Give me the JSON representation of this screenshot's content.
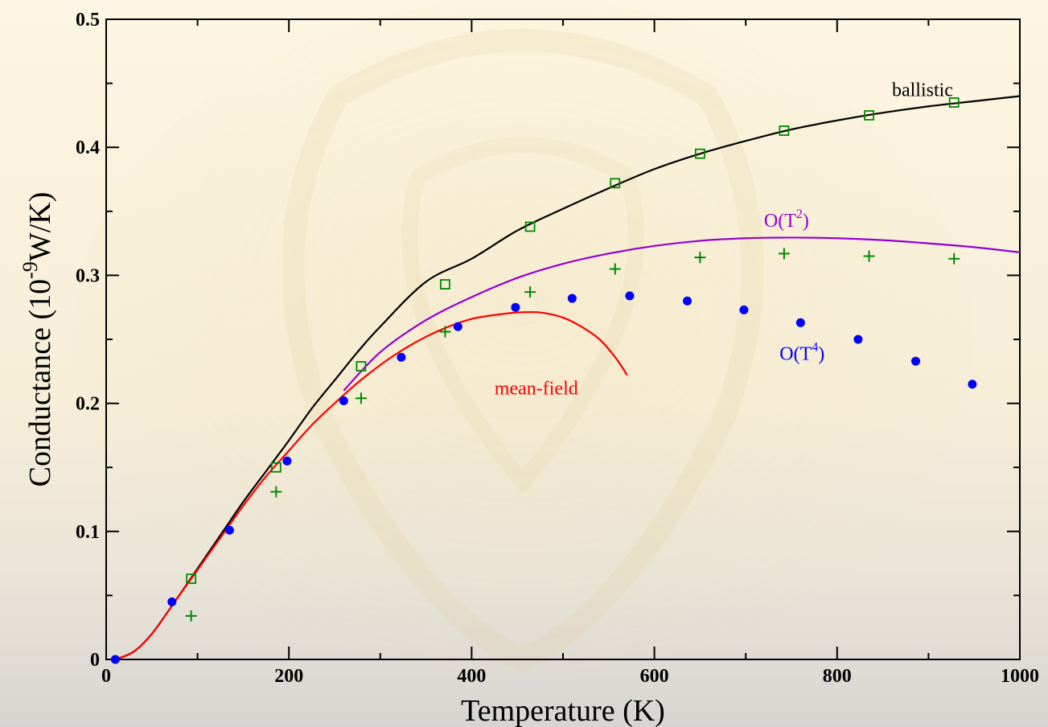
{
  "colors": {
    "ballistic": "#000000",
    "o_t2": "#9400d3",
    "mean_field": "#ff0000",
    "o_t4": "#0000ff",
    "squares": "#008800",
    "plus": "#008800"
  },
  "chart_data": {
    "type": "line",
    "xlabel": "Temperature (K)",
    "ylabel": {
      "prefix": "Conductance (10",
      "exp": "-9",
      "suffix": "W/K)"
    },
    "xlim": [
      0,
      1000
    ],
    "ylim": [
      0,
      0.5
    ],
    "xticks": [
      0,
      200,
      400,
      600,
      800,
      1000
    ],
    "yticks": [
      0,
      0.1,
      0.2,
      0.3,
      0.4,
      0.5
    ],
    "xtick_labels": [
      "0",
      "200",
      "400",
      "600",
      "800",
      "1000"
    ],
    "ytick_labels": [
      "0",
      "0.1",
      "0.2",
      "0.3",
      "0.4",
      "0.5"
    ],
    "grid": false,
    "annotations": [
      {
        "id": "ballistic",
        "text": "ballistic",
        "color": "#000000",
        "x": 860,
        "y": 0.44
      },
      {
        "id": "o_t2",
        "text": "O(T",
        "sup": "2",
        "tail": ")",
        "color": "#9400d3",
        "x": 720,
        "y": 0.338
      },
      {
        "id": "mean_field",
        "text": "mean-field",
        "color": "#ff0000",
        "x": 425,
        "y": 0.207
      },
      {
        "id": "o_t4",
        "text": "O(T",
        "sup": "4",
        "tail": ")",
        "color": "#0000ff",
        "x": 737,
        "y": 0.234
      }
    ],
    "series": [
      {
        "name": "ballistic",
        "kind": "line",
        "color": "#000000",
        "x": [
          10,
          30,
          50,
          75,
          100,
          125,
          150,
          175,
          200,
          225,
          250,
          275,
          300,
          350,
          400,
          450,
          500,
          550,
          600,
          650,
          700,
          750,
          800,
          850,
          900,
          950,
          1000
        ],
        "y": [
          0,
          0.006,
          0.02,
          0.045,
          0.071,
          0.097,
          0.123,
          0.147,
          0.171,
          0.196,
          0.218,
          0.24,
          0.26,
          0.295,
          0.313,
          0.335,
          0.352,
          0.368,
          0.383,
          0.395,
          0.405,
          0.414,
          0.421,
          0.427,
          0.432,
          0.436,
          0.44
        ]
      },
      {
        "name": "O(T^2)",
        "kind": "line",
        "color": "#9400d3",
        "x": [
          260,
          300,
          350,
          400,
          450,
          500,
          550,
          600,
          650,
          700,
          750,
          800,
          850,
          900,
          950,
          1000
        ],
        "y": [
          0.21,
          0.24,
          0.265,
          0.283,
          0.298,
          0.309,
          0.317,
          0.323,
          0.327,
          0.329,
          0.3295,
          0.329,
          0.3275,
          0.325,
          0.322,
          0.318
        ]
      },
      {
        "name": "mean-field",
        "kind": "line",
        "color": "#ff0000",
        "x": [
          10,
          30,
          50,
          75,
          100,
          125,
          150,
          175,
          200,
          225,
          250,
          275,
          300,
          325,
          350,
          375,
          400,
          425,
          450,
          475,
          500,
          520,
          540,
          555,
          565,
          570
        ],
        "y": [
          0,
          0.006,
          0.02,
          0.045,
          0.07,
          0.095,
          0.12,
          0.143,
          0.163,
          0.183,
          0.2,
          0.216,
          0.23,
          0.242,
          0.252,
          0.26,
          0.266,
          0.269,
          0.271,
          0.271,
          0.267,
          0.26,
          0.25,
          0.238,
          0.228,
          0.222
        ]
      },
      {
        "name": "O(T^4) points",
        "kind": "circle",
        "color": "#0000ff",
        "x": [
          10,
          72,
          135,
          198,
          260,
          323,
          385,
          448,
          510,
          573,
          636,
          698,
          760,
          823,
          886,
          948
        ],
        "y": [
          0,
          0.045,
          0.101,
          0.155,
          0.202,
          0.236,
          0.26,
          0.275,
          0.282,
          0.284,
          0.28,
          0.273,
          0.263,
          0.25,
          0.233,
          0.215
        ]
      },
      {
        "name": "ballistic points",
        "kind": "square",
        "color": "#008800",
        "x": [
          93,
          186,
          279,
          371,
          464,
          557,
          650,
          742,
          835,
          928
        ],
        "y": [
          0.063,
          0.15,
          0.229,
          0.293,
          0.338,
          0.372,
          0.395,
          0.413,
          0.425,
          0.435
        ]
      },
      {
        "name": "plus points",
        "kind": "plus",
        "color": "#008800",
        "x": [
          93,
          186,
          279,
          371,
          464,
          557,
          650,
          742,
          835,
          928
        ],
        "y": [
          0.034,
          0.131,
          0.204,
          0.256,
          0.287,
          0.305,
          0.314,
          0.317,
          0.315,
          0.313
        ]
      }
    ]
  }
}
